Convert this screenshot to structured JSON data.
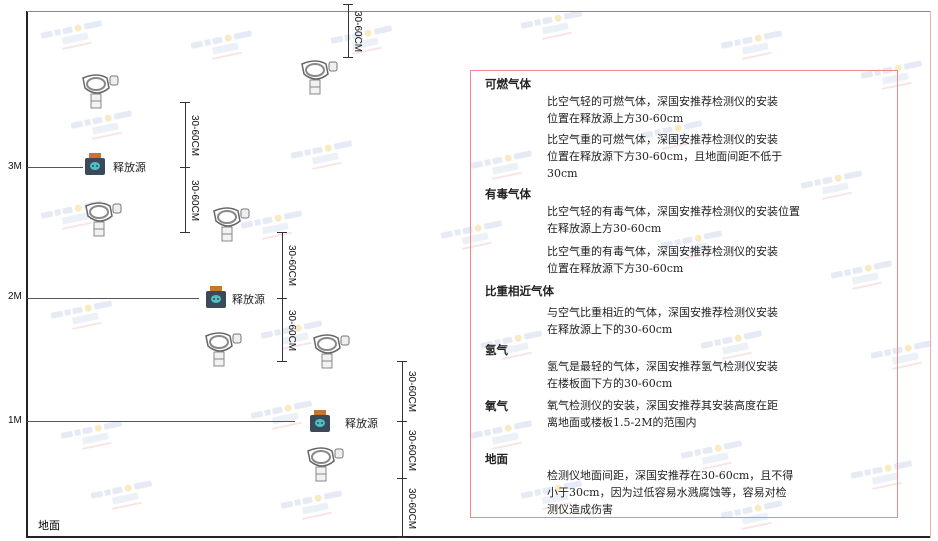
{
  "watermark": "SINGOAN 深国安",
  "levels": [
    "3M",
    "2M",
    "1M"
  ],
  "floor_label": "地面",
  "source_label": "释放源",
  "dimension_label": "30-60CM",
  "colors": {
    "panel_border": "#f08a8a",
    "source_body": "#3b4a5a",
    "source_cap": "#c7762b",
    "source_icon": "#4fc1c5"
  },
  "panel": {
    "sections": [
      {
        "title": "可燃气体",
        "paras": [
          "比空气轻的可燃气体，深国安推荐检测仪的安装\n位置在释放源上方30-60cm",
          "比空气重的可燃气体，深国安推荐检测仪的安装\n位置在释放源下方30-60cm，且地面间距不低于\n30cm"
        ]
      },
      {
        "title": "有毒气体",
        "paras": [
          "比空气轻的有毒气体，深国安推荐检测仪的安装位置\n在释放源上方30-60cm",
          "比空气重的有毒气体，深国安推荐检测仪的安装\n位置在释放源下方30-60cm"
        ]
      },
      {
        "title": "比重相近气体",
        "paras": [
          "与空气比重相近的气体，深国安推荐检测仪安装\n在释放源上下的30-60cm"
        ]
      },
      {
        "title": "氢气",
        "paras": [
          "氢气是最轻的气体，深国安推荐氢气检测仪安装\n在楼板面下方的30-60cm"
        ]
      },
      {
        "title": "氧气",
        "paras": [
          "氧气检测仪的安装，深国安推荐其安装高度在距\n离地面或楼板1.5-2M的范围内"
        ]
      },
      {
        "title": "地面",
        "paras": [
          "检测仪地面间距，深国安推荐在30-60cm，且不得\n小于30cm，因为过低容易水溅腐蚀等，容易对检\n测仪造成伤害"
        ]
      }
    ]
  }
}
